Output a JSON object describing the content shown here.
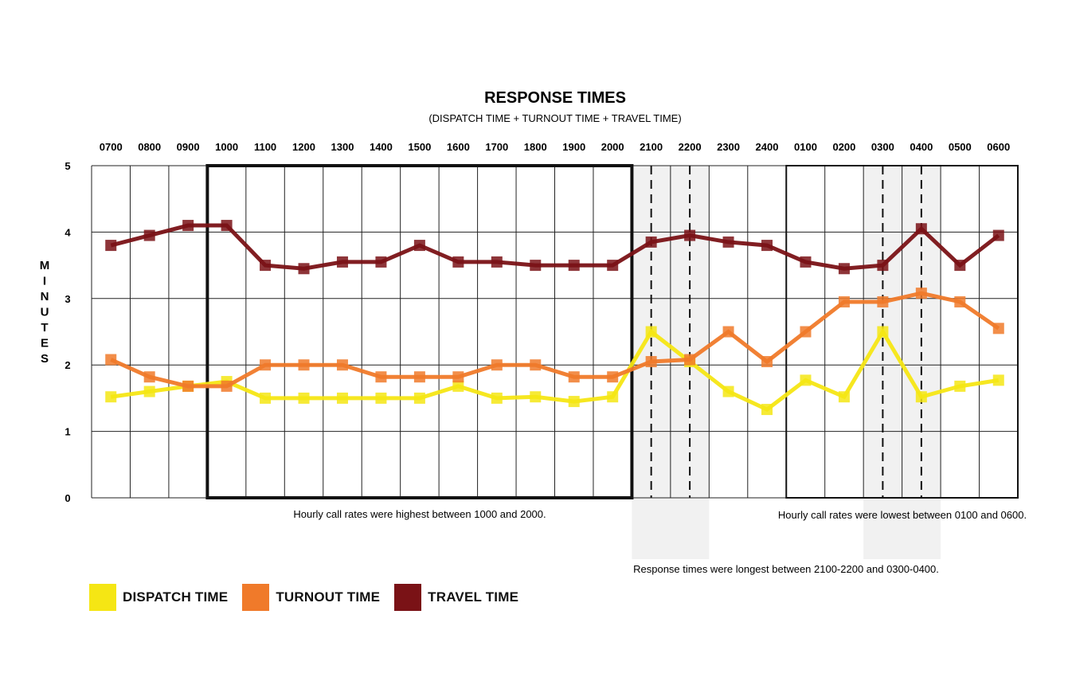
{
  "chart_data": {
    "type": "line",
    "title": "RESPONSE TIMES",
    "subtitle": "(DISPATCH TIME + TURNOUT TIME + TRAVEL TIME)",
    "ylabel": "MINUTES",
    "xlabel": "",
    "ylim": [
      0,
      5
    ],
    "yticks": [
      "0",
      "1",
      "2",
      "3",
      "4",
      "5"
    ],
    "categories": [
      "0700",
      "0800",
      "0900",
      "1000",
      "1100",
      "1200",
      "1300",
      "1400",
      "1500",
      "1600",
      "1700",
      "1800",
      "1900",
      "2000",
      "2100",
      "2200",
      "2300",
      "2400",
      "0100",
      "0200",
      "0300",
      "0400",
      "0500",
      "0600"
    ],
    "grid": true,
    "legend_position": "bottom-left",
    "series": [
      {
        "name": "DISPATCH TIME",
        "color": "#f5e614",
        "values": [
          1.52,
          1.6,
          1.68,
          1.75,
          1.5,
          1.5,
          1.5,
          1.5,
          1.5,
          1.68,
          1.5,
          1.52,
          1.45,
          1.52,
          2.5,
          2.05,
          1.6,
          1.33,
          1.77,
          1.52,
          2.5,
          1.52,
          1.68,
          1.77
        ]
      },
      {
        "name": "TURNOUT TIME",
        "color": "#f07a2a",
        "values": [
          2.08,
          1.82,
          1.68,
          1.68,
          2.0,
          2.0,
          2.0,
          1.82,
          1.82,
          1.82,
          2.0,
          2.0,
          1.82,
          1.82,
          2.05,
          2.08,
          2.5,
          2.05,
          2.5,
          2.95,
          2.95,
          3.08,
          2.95,
          2.55
        ]
      },
      {
        "name": "TRAVEL TIME",
        "color": "#7a1216",
        "values": [
          3.8,
          3.95,
          4.1,
          4.1,
          3.5,
          3.45,
          3.55,
          3.55,
          3.8,
          3.55,
          3.55,
          3.5,
          3.5,
          3.5,
          3.85,
          3.95,
          3.85,
          3.8,
          3.55,
          3.45,
          3.5,
          4.05,
          3.5,
          3.95
        ]
      }
    ],
    "highlight_boxes": [
      {
        "from": "1000",
        "to": "2000",
        "style": "thick"
      },
      {
        "from": "0100",
        "to": "0600",
        "style": "thin"
      }
    ],
    "shaded_ranges": [
      {
        "from": "2100",
        "to": "2200"
      },
      {
        "from": "0300",
        "to": "0400"
      }
    ],
    "annotations": {
      "high_rates": "Hourly call rates were highest between 1000 and 2000.",
      "low_rates": "Hourly call rates were lowest between 0100 and 0600.",
      "longest": "Response times were longest between 2100-2200 and 0300-0400."
    }
  },
  "legend": [
    {
      "label": "DISPATCH TIME",
      "color": "#f5e614"
    },
    {
      "label": "TURNOUT TIME",
      "color": "#f07a2a"
    },
    {
      "label": "TRAVEL TIME",
      "color": "#7a1216"
    }
  ]
}
